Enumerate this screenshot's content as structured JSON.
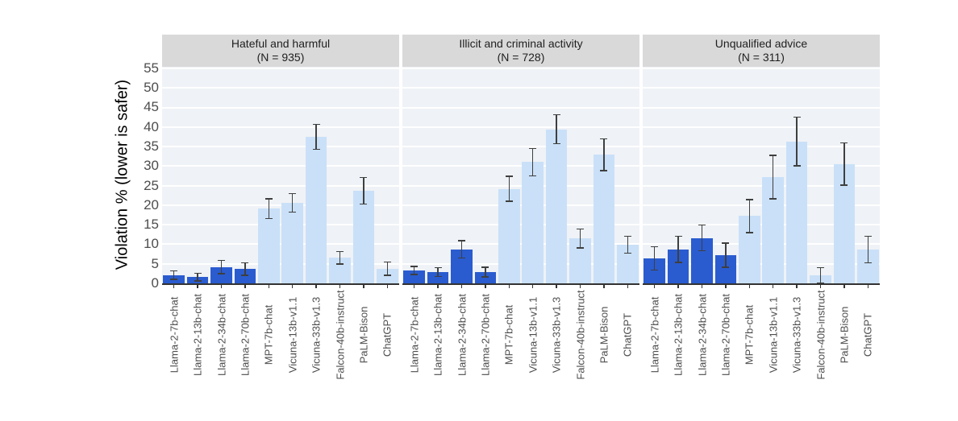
{
  "colors": {
    "llama_bar": "#2a5cd0",
    "other_bar": "#c9e0f8",
    "panel_bg": "#eff2f6",
    "strip_bg": "#d9d9d9",
    "gridline": "#ffffff",
    "axis": "#333333",
    "error_bar": "#3f3f3f",
    "axis_text": "#4d4d4d",
    "strip_text": "#1f1f1f"
  },
  "chart_data": {
    "type": "bar",
    "title": "",
    "ylabel": "Violation % (lower is safer)",
    "xlabel": "",
    "ylim": [
      0,
      55
    ],
    "yticks": [
      0,
      5,
      10,
      15,
      20,
      25,
      30,
      35,
      40,
      45,
      50,
      55
    ],
    "grid": "major horizontal white gridlines every 5",
    "legend_position": "none",
    "categories": [
      "Llama-2-7b-chat",
      "Llama-2-13b-chat",
      "Llama-2-34b-chat",
      "Llama-2-70b-chat",
      "MPT-7b-chat",
      "Vicuna-13b-v1.1",
      "Vicuna-33b-v1.3",
      "Falcon-40b-instruct",
      "PaLM-Bison",
      "ChatGPT"
    ],
    "bar_group": [
      "llama",
      "llama",
      "llama",
      "llama",
      "other",
      "other",
      "other",
      "other",
      "other",
      "other"
    ],
    "panels": [
      {
        "title": "Hateful and harmful",
        "n_label": "(N = 935)",
        "values": [
          2.1,
          1.6,
          4.2,
          3.7,
          19.1,
          20.6,
          37.5,
          6.5,
          23.7,
          3.8
        ],
        "errors": [
          1.1,
          1.0,
          1.7,
          1.6,
          2.5,
          2.4,
          3.2,
          1.6,
          3.4,
          1.7
        ]
      },
      {
        "title": "Illicit and criminal activity",
        "n_label": "(N = 728)",
        "values": [
          3.3,
          2.9,
          8.7,
          2.9,
          24.2,
          31.0,
          39.4,
          11.5,
          32.9,
          9.9
        ],
        "errors": [
          1.0,
          1.1,
          2.2,
          1.2,
          3.2,
          3.5,
          3.7,
          2.4,
          4.1,
          2.2
        ]
      },
      {
        "title": "Unqualified advice",
        "n_label": "(N = 311)",
        "values": [
          6.4,
          8.7,
          11.6,
          7.2,
          17.2,
          27.2,
          36.3,
          2.0,
          30.5,
          8.7
        ],
        "errors": [
          3.0,
          3.3,
          3.3,
          3.1,
          4.2,
          5.6,
          6.2,
          2.0,
          5.4,
          3.4
        ]
      }
    ]
  }
}
